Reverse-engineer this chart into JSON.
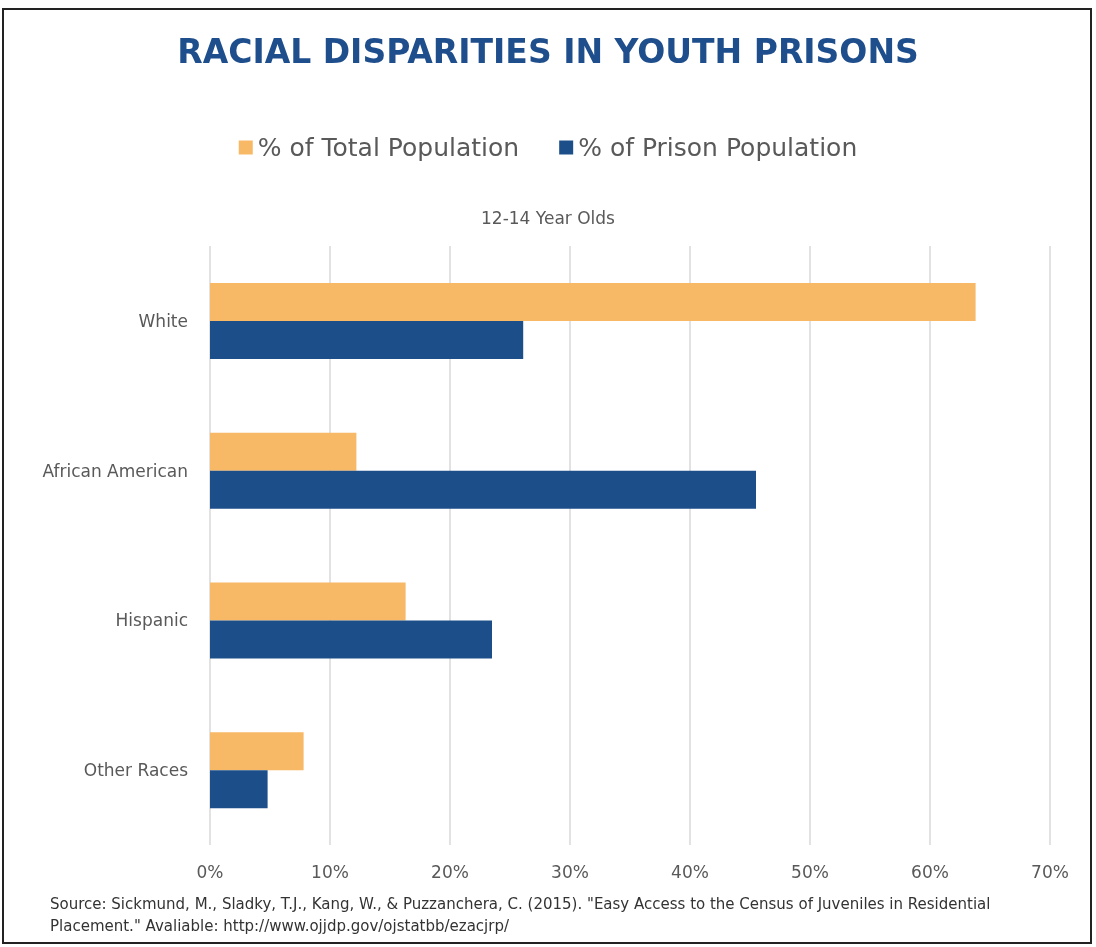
{
  "chart_data": {
    "type": "bar",
    "orientation": "horizontal",
    "title": "RACIAL DISPARITIES IN YOUTH PRISONS",
    "subtitle": "12-14 Year Olds",
    "categories": [
      "White",
      "African American",
      "Hispanic",
      "Other Races"
    ],
    "series": [
      {
        "name": "% of Total Population",
        "color": "#f7b966",
        "values": [
          63.8,
          12.2,
          16.3,
          7.8
        ]
      },
      {
        "name": "% of Prison Population",
        "color": "#1c4e8a",
        "values": [
          26.1,
          45.5,
          23.5,
          4.8
        ]
      }
    ],
    "xlim": [
      0,
      70
    ],
    "xticks": [
      {
        "value": 0,
        "label": "0%"
      },
      {
        "value": 10,
        "label": "10%"
      },
      {
        "value": 20,
        "label": "20%"
      },
      {
        "value": 30,
        "label": "30%"
      },
      {
        "value": 40,
        "label": "40%"
      },
      {
        "value": 50,
        "label": "50%"
      },
      {
        "value": 60,
        "label": "60%"
      },
      {
        "value": 70,
        "label": "70%"
      }
    ],
    "grid": "x",
    "legend": "top",
    "annotations": [
      "Source: Sickmund, M., Sladky, T.J., Kang, W., & Puzzanchera, C. (2015). \"Easy Access to the Census of Juveniles in Residential Placement.\" Avaliable: http://www.ojjdp.gov/ojstatbb/ezacjrp/"
    ]
  }
}
